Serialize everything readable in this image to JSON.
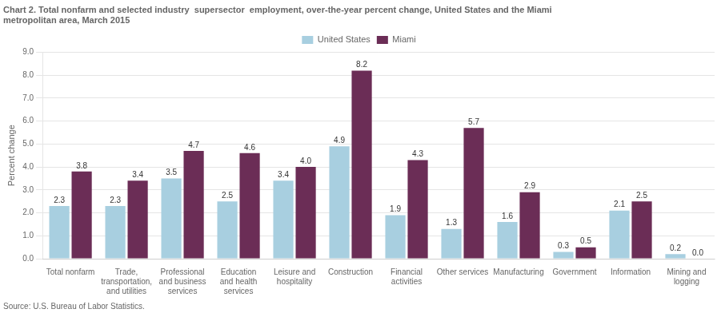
{
  "chart_data": {
    "type": "bar",
    "title": [
      "Chart 2. Total nonfarm and selected industry  supersector  employment, over-the-year percent change, United States and the Miami",
      "metropolitan area, March 2015"
    ],
    "y_label": "Percent change",
    "annotations": [
      "Source: U.S. Bureau of Labor Statistics."
    ],
    "categories": [
      "Total nonfarm",
      "Trade,\ntransportation,\nand utilities",
      "Professional\nand business\nservices",
      "Education\nand health\nservices",
      "Leisure and\nhospitality",
      "Construction",
      "Financial\nactivities",
      "Other services",
      "Manufacturing",
      "Government",
      "Information",
      "Mining and\nlogging"
    ],
    "series": [
      {
        "name": "United States",
        "color": "#a8cfe0",
        "values": [
          2.3,
          2.3,
          3.5,
          2.5,
          3.4,
          4.9,
          1.9,
          1.3,
          1.6,
          0.3,
          2.1,
          0.2
        ]
      },
      {
        "name": "Miami",
        "color": "#6B2D56",
        "values": [
          3.8,
          3.4,
          4.7,
          4.6,
          4.0,
          8.2,
          4.3,
          5.7,
          2.9,
          0.5,
          2.5,
          0.0
        ],
        "value_labels": [
          "3.8",
          "3.4",
          "4.7",
          "4.6",
          "4.0",
          "8.2",
          "4.3",
          "5.7",
          "2.9",
          "0.5",
          "2.5",
          "0.0"
        ]
      }
    ],
    "ylim": [
      0,
      9.0
    ],
    "yticks": [
      {
        "value": 0,
        "label": "0.0"
      },
      {
        "value": 1,
        "label": "1.0"
      },
      {
        "value": 2,
        "label": "2.0"
      },
      {
        "value": 3,
        "label": "3.0"
      },
      {
        "value": 4,
        "label": "4.0"
      },
      {
        "value": 5,
        "label": "5.0"
      },
      {
        "value": 6,
        "label": "6.0"
      },
      {
        "value": 7,
        "label": "7.0"
      },
      {
        "value": 8,
        "label": "8.0"
      },
      {
        "value": 9,
        "label": "9.0"
      }
    ],
    "grid": true,
    "legend": "top",
    "data_labels": true
  }
}
